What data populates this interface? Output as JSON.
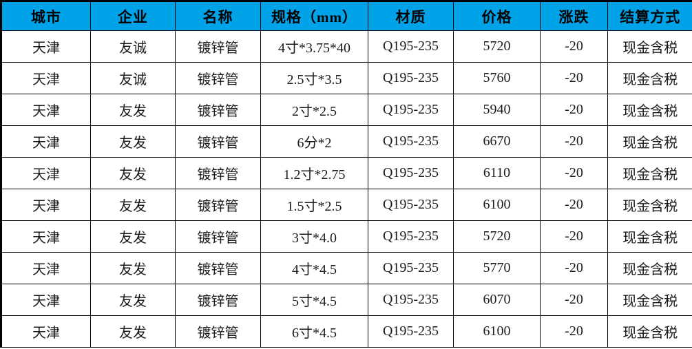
{
  "colors": {
    "header_bg": "#00A2E8",
    "header_text": "#000000",
    "body_text": "#1a1a1a",
    "grid_line": "#000000",
    "row_bg": "#ffffff"
  },
  "table": {
    "columns": [
      {
        "key": "city",
        "label": "城市"
      },
      {
        "key": "company",
        "label": "企业"
      },
      {
        "key": "name",
        "label": "名称"
      },
      {
        "key": "spec",
        "label": "规格（mm）"
      },
      {
        "key": "material",
        "label": "材质"
      },
      {
        "key": "price",
        "label": "价格"
      },
      {
        "key": "change",
        "label": "涨跌"
      },
      {
        "key": "settlement",
        "label": "结算方式"
      }
    ],
    "rows": [
      {
        "city": "天津",
        "company": "友诚",
        "name": "镀锌管",
        "spec": "4寸*3.75*40",
        "material": "Q195-235",
        "price": "5720",
        "change": "-20",
        "settlement": "现金含税"
      },
      {
        "city": "天津",
        "company": "友诚",
        "name": "镀锌管",
        "spec": "2.5寸*3.5",
        "material": "Q195-235",
        "price": "5760",
        "change": "-20",
        "settlement": "现金含税"
      },
      {
        "city": "天津",
        "company": "友发",
        "name": "镀锌管",
        "spec": "2寸*2.5",
        "material": "Q195-235",
        "price": "5940",
        "change": "-20",
        "settlement": "现金含税"
      },
      {
        "city": "天津",
        "company": "友发",
        "name": "镀锌管",
        "spec": "6分*2",
        "material": "Q195-235",
        "price": "6670",
        "change": "-20",
        "settlement": "现金含税"
      },
      {
        "city": "天津",
        "company": "友发",
        "name": "镀锌管",
        "spec": "1.2寸*2.75",
        "material": "Q195-235",
        "price": "6110",
        "change": "-20",
        "settlement": "现金含税"
      },
      {
        "city": "天津",
        "company": "友发",
        "name": "镀锌管",
        "spec": "1.5寸*2.5",
        "material": "Q195-235",
        "price": "6100",
        "change": "-20",
        "settlement": "现金含税"
      },
      {
        "city": "天津",
        "company": "友发",
        "name": "镀锌管",
        "spec": "3寸*4.0",
        "material": "Q195-235",
        "price": "5720",
        "change": "-20",
        "settlement": "现金含税"
      },
      {
        "city": "天津",
        "company": "友发",
        "name": "镀锌管",
        "spec": "4寸*4.5",
        "material": "Q195-235",
        "price": "5770",
        "change": "-20",
        "settlement": "现金含税"
      },
      {
        "city": "天津",
        "company": "友发",
        "name": "镀锌管",
        "spec": "5寸*4.5",
        "material": "Q195-235",
        "price": "6070",
        "change": "-20",
        "settlement": "现金含税"
      },
      {
        "city": "天津",
        "company": "友发",
        "name": "镀锌管",
        "spec": "6寸*4.5",
        "material": "Q195-235",
        "price": "6100",
        "change": "-20",
        "settlement": "现金含税"
      }
    ]
  },
  "chart_data": {
    "type": "table",
    "title": "",
    "columns": [
      "城市",
      "企业",
      "名称",
      "规格（mm）",
      "材质",
      "价格",
      "涨跌",
      "结算方式"
    ],
    "rows": [
      [
        "天津",
        "友诚",
        "镀锌管",
        "4寸*3.75*40",
        "Q195-235",
        5720,
        -20,
        "现金含税"
      ],
      [
        "天津",
        "友诚",
        "镀锌管",
        "2.5寸*3.5",
        "Q195-235",
        5760,
        -20,
        "现金含税"
      ],
      [
        "天津",
        "友发",
        "镀锌管",
        "2寸*2.5",
        "Q195-235",
        5940,
        -20,
        "现金含税"
      ],
      [
        "天津",
        "友发",
        "镀锌管",
        "6分*2",
        "Q195-235",
        6670,
        -20,
        "现金含税"
      ],
      [
        "天津",
        "友发",
        "镀锌管",
        "1.2寸*2.75",
        "Q195-235",
        6110,
        -20,
        "现金含税"
      ],
      [
        "天津",
        "友发",
        "镀锌管",
        "1.5寸*2.5",
        "Q195-235",
        6100,
        -20,
        "现金含税"
      ],
      [
        "天津",
        "友发",
        "镀锌管",
        "3寸*4.0",
        "Q195-235",
        5720,
        -20,
        "现金含税"
      ],
      [
        "天津",
        "友发",
        "镀锌管",
        "4寸*4.5",
        "Q195-235",
        5770,
        -20,
        "现金含税"
      ],
      [
        "天津",
        "友发",
        "镀锌管",
        "5寸*4.5",
        "Q195-235",
        6070,
        -20,
        "现金含税"
      ],
      [
        "天津",
        "友发",
        "镀锌管",
        "6寸*4.5",
        "Q195-235",
        6100,
        -20,
        "现金含税"
      ]
    ]
  }
}
